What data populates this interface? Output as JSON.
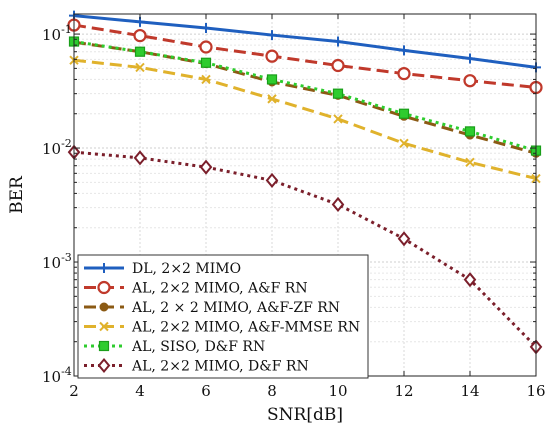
{
  "chart_data": {
    "type": "line",
    "xlabel": "SNR[dB]",
    "ylabel": "BER",
    "xlim": [
      2,
      16
    ],
    "ylim": [
      0.0001,
      0.15
    ],
    "yscale": "log",
    "grid": true,
    "legend_position": "bottom-left",
    "x_ticks": [
      "2",
      "4",
      "6",
      "8",
      "10",
      "12",
      "14",
      "16"
    ],
    "y_ticks": [
      {
        "value": 0.1,
        "base": "10",
        "exp": "-1"
      },
      {
        "value": 0.01,
        "base": "10",
        "exp": "-2"
      },
      {
        "value": 0.001,
        "base": "10",
        "exp": "-3"
      },
      {
        "value": 0.0001,
        "base": "10",
        "exp": "-4"
      }
    ],
    "x": [
      2,
      4,
      6,
      8,
      10,
      12,
      14,
      16
    ],
    "series": [
      {
        "name": "DL, 2×2 MIMO",
        "color": "#1f5fbf",
        "dash": "",
        "marker": "plus",
        "values": [
          0.145,
          0.128,
          0.113,
          0.098,
          0.086,
          0.072,
          0.061,
          0.051
        ]
      },
      {
        "name": "AL, 2×2 MIMO, A&F RN",
        "color": "#c0392b",
        "dash": "12 6",
        "marker": "circle",
        "values": [
          0.12,
          0.097,
          0.077,
          0.064,
          0.053,
          0.045,
          0.039,
          0.034
        ]
      },
      {
        "name": "AL, 2 × 2 MIMO, A&F-ZF RN",
        "color": "#8b5a14",
        "dash": "12 6",
        "marker": "dot",
        "values": [
          0.085,
          0.07,
          0.055,
          0.038,
          0.029,
          0.019,
          0.013,
          0.009
        ]
      },
      {
        "name": "AL, 2×2 MIMO, A&F-MMSE RN",
        "color": "#e0b22c",
        "dash": "12 6",
        "marker": "x",
        "values": [
          0.059,
          0.051,
          0.04,
          0.027,
          0.018,
          0.011,
          0.0075,
          0.0054
        ]
      },
      {
        "name": "AL, SISO, D&F RN",
        "color": "#2ecc2e",
        "dash": "3 4",
        "marker": "square",
        "values": [
          0.086,
          0.07,
          0.056,
          0.04,
          0.03,
          0.02,
          0.014,
          0.0095
        ]
      },
      {
        "name": "AL, 2×2 MIMO, D&F RN",
        "color": "#7b1f2b",
        "dash": "3 4",
        "marker": "diamond",
        "values": [
          0.0092,
          0.0082,
          0.0068,
          0.0052,
          0.0032,
          0.0016,
          0.0007,
          0.00018
        ]
      }
    ]
  }
}
